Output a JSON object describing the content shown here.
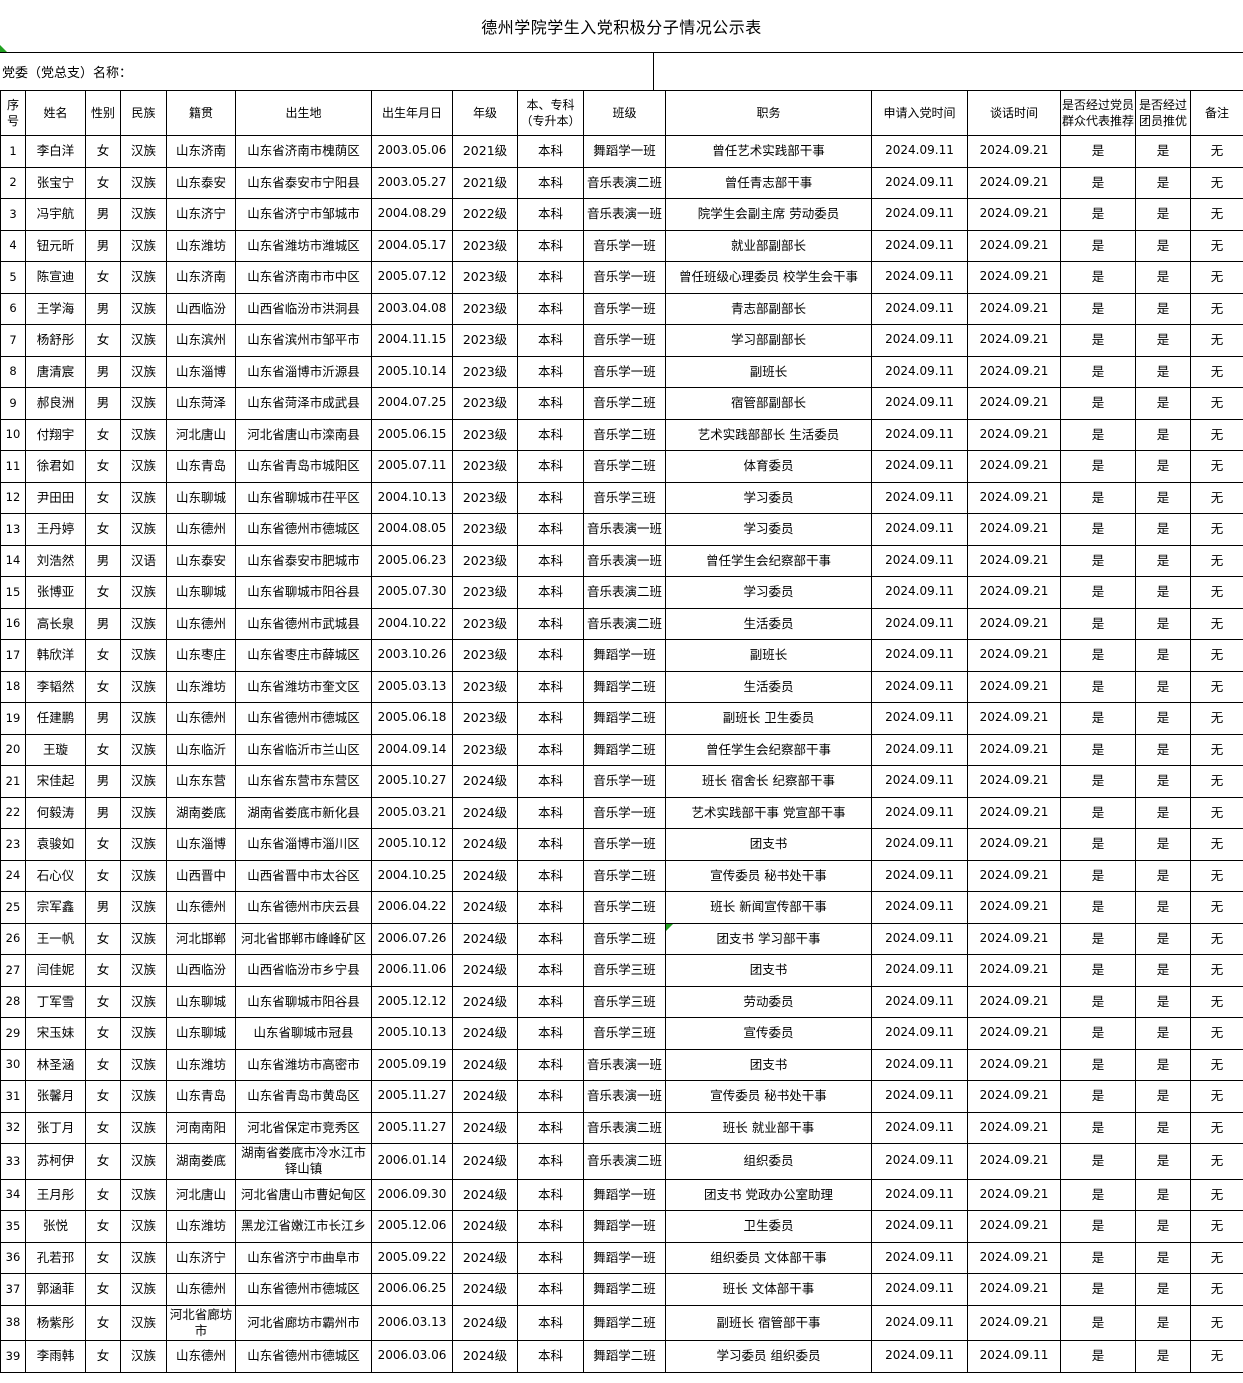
{
  "title": "德州学院学生入党积极分子情况公示表",
  "preheader": {
    "label": "党委（党总支）名称："
  },
  "colors": {
    "artifact_green": "#21a121",
    "border": "#000000",
    "background": "#ffffff"
  },
  "icons": {
    "top_left_marker": "green-triangle-artifact",
    "cell_marker": "excel-error-green-triangle"
  },
  "table": {
    "columns": [
      {
        "key": "index",
        "label": "序号"
      },
      {
        "key": "name",
        "label": "姓名"
      },
      {
        "key": "gender",
        "label": "性别"
      },
      {
        "key": "ethnicity",
        "label": "民族"
      },
      {
        "key": "native-place",
        "label": "籍贯"
      },
      {
        "key": "birthplace",
        "label": "出生地"
      },
      {
        "key": "birth-date",
        "label": "出生年月日"
      },
      {
        "key": "grade",
        "label": "年级"
      },
      {
        "key": "degree",
        "label": "本、专科\n（专升本）"
      },
      {
        "key": "class",
        "label": "班级"
      },
      {
        "key": "position",
        "label": "职务"
      },
      {
        "key": "apply-date",
        "label": "申请入党时间"
      },
      {
        "key": "talk-date",
        "label": "谈话时间"
      },
      {
        "key": "member-recommend",
        "label": "是否经过党员\n群众代表推荐"
      },
      {
        "key": "league-recommend",
        "label": "是否经过\n团员推优"
      },
      {
        "key": "remark",
        "label": "备注"
      }
    ],
    "rows": [
      [
        "1",
        "李白洋",
        "女",
        "汉族",
        "山东济南",
        "山东省济南市槐荫区",
        "2003.05.06",
        "2021级",
        "本科",
        "舞蹈学一班",
        "曾任艺术实践部干事",
        "2024.09.11",
        "2024.09.21",
        "是",
        "是",
        "无"
      ],
      [
        "2",
        "张宝宁",
        "女",
        "汉族",
        "山东泰安",
        "山东省泰安市宁阳县",
        "2003.05.27",
        "2021级",
        "本科",
        "音乐表演二班",
        "曾任青志部干事",
        "2024.09.11",
        "2024.09.21",
        "是",
        "是",
        "无"
      ],
      [
        "3",
        "冯宇航",
        "男",
        "汉族",
        "山东济宁",
        "山东省济宁市邹城市",
        "2004.08.29",
        "2022级",
        "本科",
        "音乐表演一班",
        "院学生会副主席 劳动委员",
        "2024.09.11",
        "2024.09.21",
        "是",
        "是",
        "无"
      ],
      [
        "4",
        "钮元昕",
        "男",
        "汉族",
        "山东潍坊",
        "山东省潍坊市潍城区",
        "2004.05.17",
        "2023级",
        "本科",
        "音乐学一班",
        "就业部副部长",
        "2024.09.11",
        "2024.09.21",
        "是",
        "是",
        "无"
      ],
      [
        "5",
        "陈宣迪",
        "女",
        "汉族",
        "山东济南",
        "山东省济南市市中区",
        "2005.07.12",
        "2023级",
        "本科",
        "音乐学一班",
        "曾任班级心理委员 校学生会干事",
        "2024.09.11",
        "2024.09.21",
        "是",
        "是",
        "无"
      ],
      [
        "6",
        "王学海",
        "男",
        "汉族",
        "山西临汾",
        "山西省临汾市洪洞县",
        "2003.04.08",
        "2023级",
        "本科",
        "音乐学一班",
        "青志部副部长",
        "2024.09.11",
        "2024.09.21",
        "是",
        "是",
        "无"
      ],
      [
        "7",
        "杨舒彤",
        "女",
        "汉族",
        "山东滨州",
        "山东省滨州市邹平市",
        "2004.11.15",
        "2023级",
        "本科",
        "音乐学一班",
        "学习部副部长",
        "2024.09.11",
        "2024.09.21",
        "是",
        "是",
        "无"
      ],
      [
        "8",
        "唐清宸",
        "男",
        "汉族",
        "山东淄博",
        "山东省淄博市沂源县",
        "2005.10.14",
        "2023级",
        "本科",
        "音乐学一班",
        "副班长",
        "2024.09.11",
        "2024.09.21",
        "是",
        "是",
        "无"
      ],
      [
        "9",
        "郝良洲",
        "男",
        "汉族",
        "山东菏泽",
        "山东省菏泽市成武县",
        "2004.07.25",
        "2023级",
        "本科",
        "音乐学二班",
        "宿管部副部长",
        "2024.09.11",
        "2024.09.21",
        "是",
        "是",
        "无"
      ],
      [
        "10",
        "付翔宇",
        "女",
        "汉族",
        "河北唐山",
        "河北省唐山市滦南县",
        "2005.06.15",
        "2023级",
        "本科",
        "音乐学二班",
        "艺术实践部部长 生活委员",
        "2024.09.11",
        "2024.09.21",
        "是",
        "是",
        "无"
      ],
      [
        "11",
        "徐君如",
        "女",
        "汉族",
        "山东青岛",
        "山东省青岛市城阳区",
        "2005.07.11",
        "2023级",
        "本科",
        "音乐学二班",
        "体育委员",
        "2024.09.11",
        "2024.09.21",
        "是",
        "是",
        "无"
      ],
      [
        "12",
        "尹田田",
        "女",
        "汉族",
        "山东聊城",
        "山东省聊城市茌平区",
        "2004.10.13",
        "2023级",
        "本科",
        "音乐学三班",
        "学习委员",
        "2024.09.11",
        "2024.09.21",
        "是",
        "是",
        "无"
      ],
      [
        "13",
        "王丹婷",
        "女",
        "汉族",
        "山东德州",
        "山东省德州市德城区",
        "2004.08.05",
        "2023级",
        "本科",
        "音乐表演一班",
        "学习委员",
        "2024.09.11",
        "2024.09.21",
        "是",
        "是",
        "无"
      ],
      [
        "14",
        "刘浩然",
        "男",
        "汉语",
        "山东泰安",
        "山东省泰安市肥城市",
        "2005.06.23",
        "2023级",
        "本科",
        "音乐表演一班",
        "曾任学生会纪察部干事",
        "2024.09.11",
        "2024.09.21",
        "是",
        "是",
        "无"
      ],
      [
        "15",
        "张博亚",
        "女",
        "汉族",
        "山东聊城",
        "山东省聊城市阳谷县",
        "2005.07.30",
        "2023级",
        "本科",
        "音乐表演二班",
        "学习委员",
        "2024.09.11",
        "2024.09.21",
        "是",
        "是",
        "无"
      ],
      [
        "16",
        "高长泉",
        "男",
        "汉族",
        "山东德州",
        "山东省德州市武城县",
        "2004.10.22",
        "2023级",
        "本科",
        "音乐表演二班",
        "生活委员",
        "2024.09.11",
        "2024.09.21",
        "是",
        "是",
        "无"
      ],
      [
        "17",
        "韩欣洋",
        "女",
        "汉族",
        "山东枣庄",
        "山东省枣庄市薛城区",
        "2003.10.26",
        "2023级",
        "本科",
        "舞蹈学一班",
        "副班长",
        "2024.09.11",
        "2024.09.21",
        "是",
        "是",
        "无"
      ],
      [
        "18",
        "李韬然",
        "女",
        "汉族",
        "山东潍坊",
        "山东省潍坊市奎文区",
        "2005.03.13",
        "2023级",
        "本科",
        "舞蹈学二班",
        "生活委员",
        "2024.09.11",
        "2024.09.21",
        "是",
        "是",
        "无"
      ],
      [
        "19",
        "任建鹏",
        "男",
        "汉族",
        "山东德州",
        "山东省德州市德城区",
        "2005.06.18",
        "2023级",
        "本科",
        "舞蹈学二班",
        "副班长 卫生委员",
        "2024.09.11",
        "2024.09.21",
        "是",
        "是",
        "无"
      ],
      [
        "20",
        "王璇",
        "女",
        "汉族",
        "山东临沂",
        "山东省临沂市兰山区",
        "2004.09.14",
        "2023级",
        "本科",
        "舞蹈学二班",
        "曾任学生会纪察部干事",
        "2024.09.11",
        "2024.09.21",
        "是",
        "是",
        "无"
      ],
      [
        "21",
        "宋佳起",
        "男",
        "汉族",
        "山东东营",
        "山东省东营市东营区",
        "2005.10.27",
        "2024级",
        "本科",
        "音乐学一班",
        "班长 宿舍长 纪察部干事",
        "2024.09.11",
        "2024.09.21",
        "是",
        "是",
        "无"
      ],
      [
        "22",
        "何毅涛",
        "男",
        "汉族",
        "湖南娄底",
        "湖南省娄底市新化县",
        "2005.03.21",
        "2024级",
        "本科",
        "音乐学一班",
        "艺术实践部干事 党宣部干事",
        "2024.09.11",
        "2024.09.21",
        "是",
        "是",
        "无"
      ],
      [
        "23",
        "袁骏如",
        "女",
        "汉族",
        "山东淄博",
        "山东省淄博市淄川区",
        "2005.10.12",
        "2024级",
        "本科",
        "音乐学一班",
        "团支书",
        "2024.09.11",
        "2024.09.21",
        "是",
        "是",
        "无"
      ],
      [
        "24",
        "石心仪",
        "女",
        "汉族",
        "山西晋中",
        "山西省晋中市太谷区",
        "2004.10.25",
        "2024级",
        "本科",
        "音乐学二班",
        "宣传委员 秘书处干事",
        "2024.09.11",
        "2024.09.21",
        "是",
        "是",
        "无"
      ],
      [
        "25",
        "宗军鑫",
        "男",
        "汉族",
        "山东德州",
        "山东省德州市庆云县",
        "2006.04.22",
        "2024级",
        "本科",
        "音乐学二班",
        "班长 新闻宣传部干事",
        "2024.09.11",
        "2024.09.21",
        "是",
        "是",
        "无"
      ],
      [
        "26",
        "王一帆",
        "女",
        "汉族",
        "河北邯郸",
        "河北省邯郸市峰峰矿区",
        "2006.07.26",
        "2024级",
        "本科",
        "音乐学二班",
        "团支书 学习部干事",
        "2024.09.11",
        "2024.09.21",
        "是",
        "是",
        "无"
      ],
      [
        "27",
        "闫佳妮",
        "女",
        "汉族",
        "山西临汾",
        "山西省临汾市乡宁县",
        "2006.11.06",
        "2024级",
        "本科",
        "音乐学三班",
        "团支书",
        "2024.09.11",
        "2024.09.21",
        "是",
        "是",
        "无"
      ],
      [
        "28",
        "丁军雪",
        "女",
        "汉族",
        "山东聊城",
        "山东省聊城市阳谷县",
        "2005.12.12",
        "2024级",
        "本科",
        "音乐学三班",
        "劳动委员",
        "2024.09.11",
        "2024.09.21",
        "是",
        "是",
        "无"
      ],
      [
        "29",
        "宋玉妹",
        "女",
        "汉族",
        "山东聊城",
        "山东省聊城市冠县",
        "2005.10.13",
        "2024级",
        "本科",
        "音乐学三班",
        "宣传委员",
        "2024.09.11",
        "2024.09.21",
        "是",
        "是",
        "无"
      ],
      [
        "30",
        "林圣涵",
        "女",
        "汉族",
        "山东潍坊",
        "山东省潍坊市高密市",
        "2005.09.19",
        "2024级",
        "本科",
        "音乐表演一班",
        "团支书",
        "2024.09.11",
        "2024.09.21",
        "是",
        "是",
        "无"
      ],
      [
        "31",
        "张馨月",
        "女",
        "汉族",
        "山东青岛",
        "山东省青岛市黄岛区",
        "2005.11.27",
        "2024级",
        "本科",
        "音乐表演一班",
        "宣传委员 秘书处干事",
        "2024.09.11",
        "2024.09.21",
        "是",
        "是",
        "无"
      ],
      [
        "32",
        "张丁月",
        "女",
        "汉族",
        "河南南阳",
        "河北省保定市竞秀区",
        "2005.11.27",
        "2024级",
        "本科",
        "音乐表演二班",
        "班长 就业部干事",
        "2024.09.11",
        "2024.09.21",
        "是",
        "是",
        "无"
      ],
      [
        "33",
        "苏柯伊",
        "女",
        "汉族",
        "湖南娄底",
        "湖南省娄底市冷水江市铎山镇",
        "2006.01.14",
        "2024级",
        "本科",
        "音乐表演二班",
        "组织委员",
        "2024.09.11",
        "2024.09.21",
        "是",
        "是",
        "无"
      ],
      [
        "34",
        "王月彤",
        "女",
        "汉族",
        "河北唐山",
        "河北省唐山市曹妃甸区",
        "2006.09.30",
        "2024级",
        "本科",
        "舞蹈学一班",
        "团支书 党政办公室助理",
        "2024.09.11",
        "2024.09.21",
        "是",
        "是",
        "无"
      ],
      [
        "35",
        "张悦",
        "女",
        "汉族",
        "山东潍坊",
        "黑龙江省嫩江市长江乡",
        "2005.12.06",
        "2024级",
        "本科",
        "舞蹈学一班",
        "卫生委员",
        "2024.09.11",
        "2024.09.21",
        "是",
        "是",
        "无"
      ],
      [
        "36",
        "孔若邘",
        "女",
        "汉族",
        "山东济宁",
        "山东省济宁市曲阜市",
        "2005.09.22",
        "2024级",
        "本科",
        "舞蹈学一班",
        "组织委员 文体部干事",
        "2024.09.11",
        "2024.09.21",
        "是",
        "是",
        "无"
      ],
      [
        "37",
        "郭涵菲",
        "女",
        "汉族",
        "山东德州",
        "山东省德州市德城区",
        "2006.06.25",
        "2024级",
        "本科",
        "舞蹈学二班",
        "班长 文体部干事",
        "2024.09.11",
        "2024.09.21",
        "是",
        "是",
        "无"
      ],
      [
        "38",
        "杨紫彤",
        "女",
        "汉族",
        "河北省廊坊市",
        "河北省廊坊市霸州市",
        "2006.03.13",
        "2024级",
        "本科",
        "舞蹈学二班",
        "副班长 宿管部干事",
        "2024.09.11",
        "2024.09.21",
        "是",
        "是",
        "无"
      ],
      [
        "39",
        "李雨韩",
        "女",
        "汉族",
        "山东德州",
        "山东省德州市德城区",
        "2006.03.06",
        "2024级",
        "本科",
        "舞蹈学二班",
        "学习委员 组织委员",
        "2024.09.11",
        "2024.09.11",
        "是",
        "是",
        "无"
      ]
    ],
    "error_marker": {
      "row_number": "26",
      "column_key": "position"
    }
  }
}
